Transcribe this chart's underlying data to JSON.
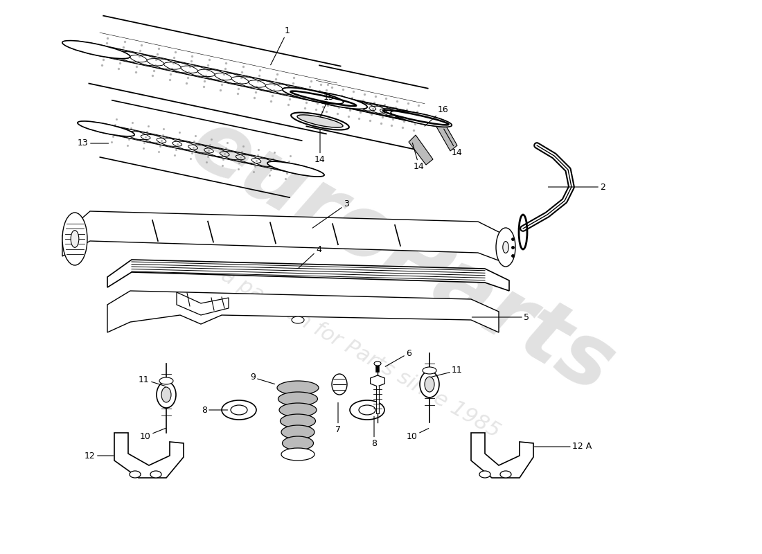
{
  "background_color": "#ffffff",
  "line_color": "#000000",
  "lw": 1.0,
  "watermark1": "euroParts",
  "watermark2": "a passion for Parts since 1985",
  "wm_color": "#c8c8c8",
  "wm_alpha": 0.55,
  "figsize": [
    11.0,
    8.0
  ],
  "dpi": 100
}
